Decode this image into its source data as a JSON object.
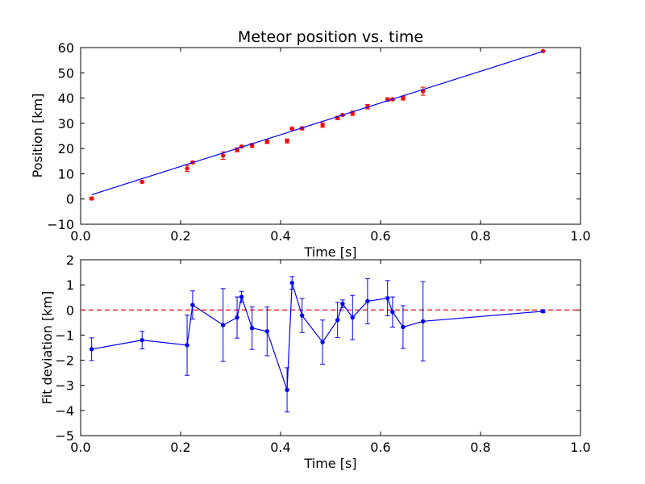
{
  "chart_data": [
    {
      "type": "scatter",
      "title": "Meteor position vs. time",
      "xlabel": "Time [s]",
      "ylabel": "Position [km]",
      "xlim": [
        0.0,
        1.0
      ],
      "ylim": [
        -10,
        60
      ],
      "xticks": [
        "0.0",
        "0.2",
        "0.4",
        "0.6",
        "0.8",
        "1.0"
      ],
      "yticks": [
        "−10",
        "0",
        "10",
        "20",
        "30",
        "40",
        "50",
        "60"
      ],
      "grid": false,
      "marker_color": "#ff0000",
      "line_color": "#0000ff",
      "series": [
        {
          "kind": "points-with-error-bars",
          "color": "#ff0000",
          "x": [
            0.022,
            0.123,
            0.213,
            0.224,
            0.285,
            0.313,
            0.322,
            0.343,
            0.373,
            0.413,
            0.423,
            0.443,
            0.484,
            0.514,
            0.524,
            0.544,
            0.574,
            0.614,
            0.624,
            0.645,
            0.685,
            0.925
          ],
          "y": [
            0.2,
            6.8,
            12.1,
            14.5,
            17.2,
            19.5,
            20.8,
            21.2,
            22.7,
            23.0,
            27.9,
            28.0,
            29.3,
            32.1,
            33.3,
            34.0,
            36.6,
            39.4,
            39.5,
            40.0,
            42.7,
            58.6
          ],
          "err": [
            0.5,
            0.4,
            1.2,
            0.4,
            1.5,
            0.8,
            0.3,
            0.8,
            0.7,
            0.8,
            0.4,
            0.6,
            0.9,
            0.7,
            0.2,
            0.9,
            0.9,
            0.7,
            0.3,
            0.8,
            1.6,
            0.1
          ]
        },
        {
          "kind": "fit-line",
          "color": "#0000ff",
          "x": [
            0.022,
            0.925
          ],
          "y": [
            1.7,
            58.5
          ]
        }
      ]
    },
    {
      "type": "line",
      "title": "",
      "xlabel": "Time [s]",
      "ylabel": "Fit deviation [km]",
      "xlim": [
        0.0,
        1.0
      ],
      "ylim": [
        -5,
        2
      ],
      "xticks": [
        "0.0",
        "0.2",
        "0.4",
        "0.6",
        "0.8",
        "1.0"
      ],
      "yticks": [
        "−5",
        "−4",
        "−3",
        "−2",
        "−1",
        "0",
        "1",
        "2"
      ],
      "grid": false,
      "line_color": "#0000ff",
      "reference_line_color": "#ff0000",
      "reference_y": 0,
      "series": [
        {
          "kind": "line-with-error-bars",
          "color": "#0000ff",
          "x": [
            0.022,
            0.123,
            0.213,
            0.224,
            0.285,
            0.313,
            0.322,
            0.343,
            0.373,
            0.413,
            0.423,
            0.443,
            0.484,
            0.514,
            0.524,
            0.544,
            0.574,
            0.614,
            0.624,
            0.645,
            0.685,
            0.925
          ],
          "y": [
            -1.56,
            -1.2,
            -1.4,
            0.2,
            -0.6,
            -0.3,
            0.52,
            -0.72,
            -0.85,
            -3.18,
            1.08,
            -0.22,
            -1.28,
            -0.4,
            0.25,
            -0.3,
            0.35,
            0.47,
            -0.08,
            -0.68,
            -0.45,
            -0.05
          ],
          "err": [
            0.45,
            0.35,
            1.2,
            0.56,
            1.45,
            0.82,
            0.22,
            0.85,
            0.97,
            0.88,
            0.25,
            0.68,
            0.88,
            0.7,
            0.15,
            0.88,
            0.9,
            0.7,
            0.6,
            0.85,
            1.58,
            0.05
          ]
        }
      ]
    }
  ]
}
